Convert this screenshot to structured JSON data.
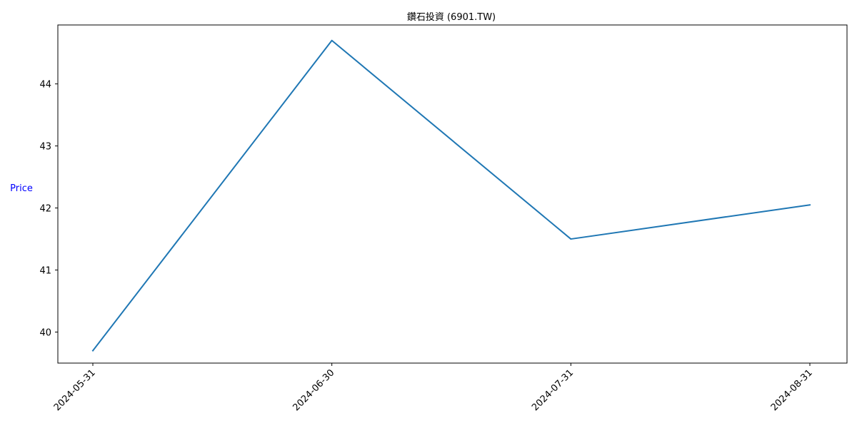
{
  "chart_data": {
    "type": "line",
    "title": "鑽石投資 (6901.TW)",
    "xlabel": "",
    "ylabel": "Price",
    "ylabel_color": "#0000ff",
    "x": [
      "2024-05-31",
      "2024-06-30",
      "2024-07-31",
      "2024-08-31"
    ],
    "series": [
      {
        "values": [
          39.7,
          44.7,
          41.5,
          42.05
        ],
        "color": "#1f77b4"
      }
    ],
    "ylim": [
      39.5,
      44.95
    ],
    "yticks": [
      40,
      41,
      42,
      43,
      44
    ],
    "grid": false,
    "legend": "none",
    "x_tick_rotation": 45
  }
}
